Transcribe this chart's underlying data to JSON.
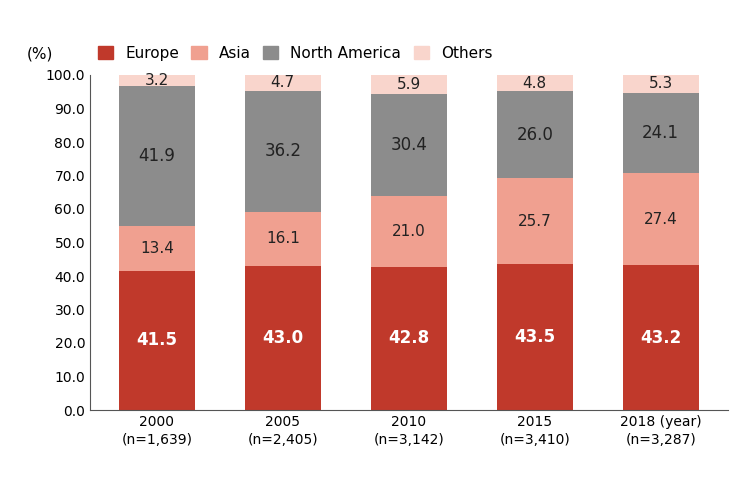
{
  "years": [
    "2000\n(n=1,639)",
    "2005\n(n=2,405)",
    "2010\n(n=3,142)",
    "2015\n(n=3,410)",
    "2018 (year)\n(n=3,287)"
  ],
  "europe": [
    41.5,
    43.0,
    42.8,
    43.5,
    43.2
  ],
  "asia": [
    13.4,
    16.1,
    21.0,
    25.7,
    27.4
  ],
  "north_america": [
    41.9,
    36.2,
    30.4,
    26.0,
    24.1
  ],
  "others": [
    3.2,
    4.7,
    5.9,
    4.8,
    5.3
  ],
  "color_europe": "#c0392b",
  "color_asia": "#f0a090",
  "color_north_america": "#8c8c8c",
  "color_others": "#f9d5cc",
  "ylabel": "(%)",
  "ylim": [
    0,
    100
  ],
  "yticks": [
    0,
    10.0,
    20.0,
    30.0,
    40.0,
    50.0,
    60.0,
    70.0,
    80.0,
    90.0,
    100.0
  ],
  "bar_width": 0.6,
  "legend_labels": [
    "Europe",
    "Asia",
    "North America",
    "Others"
  ],
  "white_text": "#ffffff",
  "dark_text": "#222222",
  "fontsize_bar_large": 12,
  "fontsize_bar_small": 11,
  "fontsize_legend": 11,
  "fontsize_axis": 10,
  "fontsize_ylabel": 11
}
